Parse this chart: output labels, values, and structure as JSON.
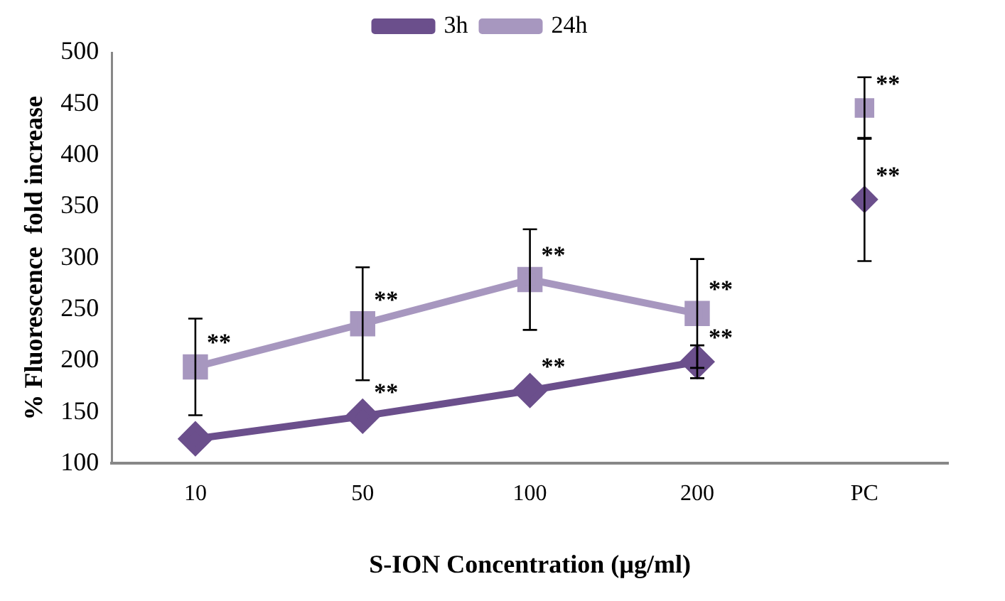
{
  "chart_data": {
    "type": "line",
    "xlabel": "S-ION Concentration (µg/ml)",
    "ylabel": "% Fluorescence  fold increase",
    "categories": [
      "10",
      "50",
      "100",
      "200",
      "PC"
    ],
    "ylim": [
      100,
      500
    ],
    "yticks": [
      100,
      150,
      200,
      250,
      300,
      350,
      400,
      450,
      500
    ],
    "grid": false,
    "legend": "top",
    "line_style": "solid",
    "series": [
      {
        "name": "3h",
        "color": "#6b4f8c",
        "marker": "diamond",
        "values": [
          124,
          146,
          171,
          199,
          null
        ],
        "errors": [
          null,
          null,
          null,
          16,
          null
        ]
      },
      {
        "name": "24h",
        "color": "#a797bf",
        "marker": "square",
        "values": [
          194,
          236,
          279,
          246,
          null
        ],
        "errors": [
          47,
          55,
          49,
          53,
          null
        ]
      },
      {
        "type": "scatter",
        "color": "#6b4f8c",
        "marker": "diamond",
        "x": [
          "PC"
        ],
        "values": [
          357
        ],
        "errors": [
          60
        ]
      },
      {
        "type": "scatter",
        "color": "#a797bf",
        "marker": "square",
        "x": [
          "PC"
        ],
        "values": [
          446
        ],
        "errors": [
          30
        ]
      }
    ],
    "annotations": [
      {
        "text": "**",
        "x": "10",
        "y": 194
      },
      {
        "text": "**",
        "x": "50",
        "y": 236
      },
      {
        "text": "**",
        "x": "50",
        "y": 146
      },
      {
        "text": "**",
        "x": "100",
        "y": 279
      },
      {
        "text": "**",
        "x": "100",
        "y": 171
      },
      {
        "text": "**",
        "x": "200",
        "y": 246
      },
      {
        "text": "**",
        "x": "200",
        "y": 199
      },
      {
        "text": "**",
        "x": "PC",
        "y": 446
      },
      {
        "text": "**",
        "x": "PC",
        "y": 357
      }
    ]
  }
}
